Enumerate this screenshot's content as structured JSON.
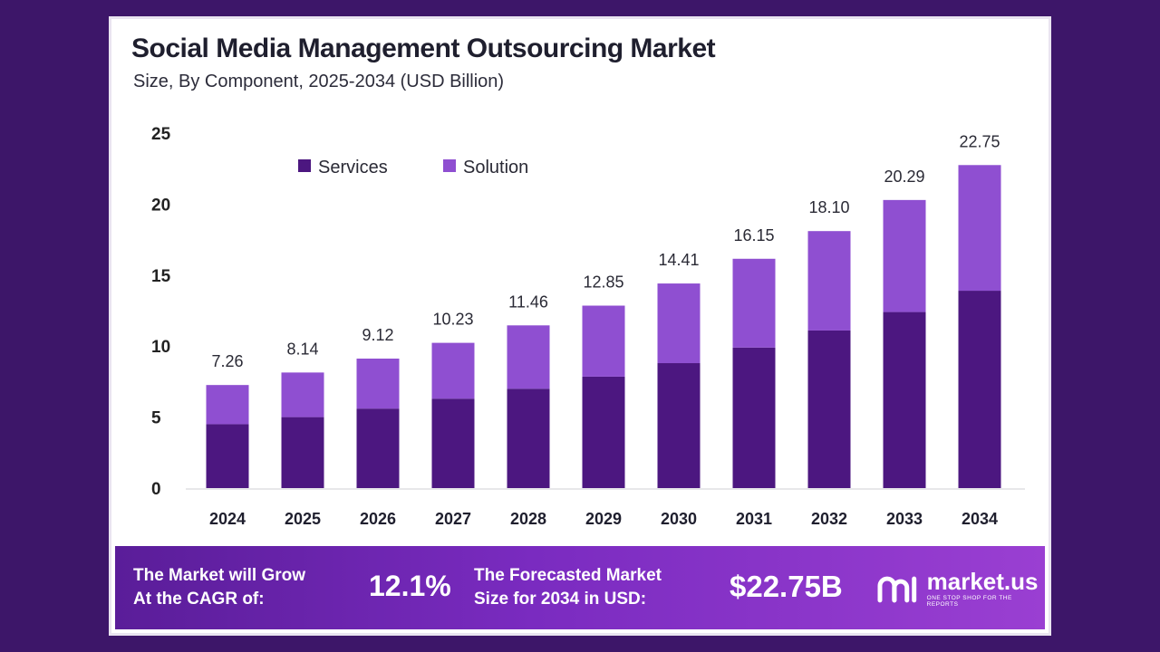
{
  "header": {
    "title": "Social Media Management Outsourcing Market",
    "subtitle": "Size, By Component, 2025-2034 (USD Billion)"
  },
  "colors": {
    "services": "#4c1780",
    "solution": "#8f4fd1",
    "background": "#3d1669"
  },
  "chart_data": {
    "type": "bar",
    "stacked": true,
    "categories": [
      "2024",
      "2025",
      "2026",
      "2027",
      "2028",
      "2029",
      "2030",
      "2031",
      "2032",
      "2033",
      "2034"
    ],
    "series": [
      {
        "name": "Services",
        "values": [
          4.5,
          5.0,
          5.6,
          6.3,
          7.0,
          7.85,
          8.8,
          9.9,
          11.1,
          12.4,
          13.9
        ]
      },
      {
        "name": "Solution",
        "values": [
          2.76,
          3.14,
          3.52,
          3.93,
          4.46,
          5.0,
          5.61,
          6.25,
          7.0,
          7.89,
          8.85
        ]
      }
    ],
    "totals": [
      "7.26",
      "8.14",
      "9.12",
      "10.23",
      "11.46",
      "12.85",
      "14.41",
      "16.15",
      "18.10",
      "20.29",
      "22.75"
    ],
    "yticks": [
      0,
      5,
      10,
      15,
      20,
      25
    ],
    "ylim": [
      0,
      25
    ],
    "legend_position": "top-left",
    "grid": false,
    "xlabel": "",
    "ylabel": ""
  },
  "footer": {
    "cagr_label_line1": "The Market will Grow",
    "cagr_label_line2": "At the CAGR of:",
    "cagr_value": "12.1%",
    "forecast_label_line1": "The Forecasted Market",
    "forecast_label_line2": "Size for 2034 in USD:",
    "forecast_value": "$22.75B",
    "brand_name": "market.us",
    "brand_tagline": "ONE STOP SHOP FOR THE REPORTS"
  }
}
